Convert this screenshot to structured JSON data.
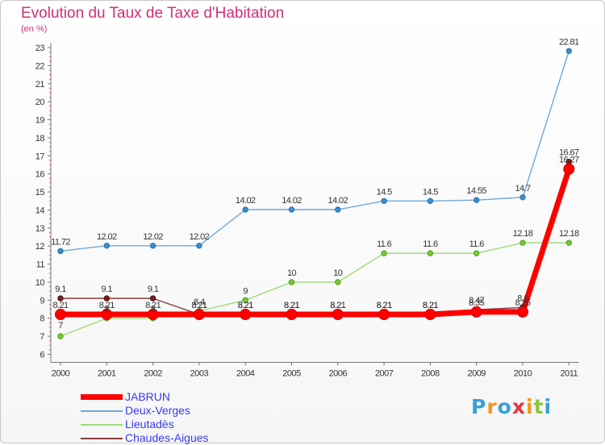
{
  "header": {
    "title": "Evolution du Taux de Taxe d'Habitation",
    "subtitle": "(en %)"
  },
  "logo": {
    "text": "Proxiti",
    "letters": [
      "P",
      "r",
      "o",
      "x",
      "i",
      "t",
      "i"
    ],
    "colors": [
      "#3aa0d8",
      "#f7941d",
      "#3aa0d8",
      "#e8363b",
      "#f7941d",
      "#8cc63f",
      "#3aa0d8"
    ]
  },
  "chart_data": {
    "type": "line",
    "title": "Evolution du Taux de Taxe d'Habitation",
    "subtitle": "(en %)",
    "x": [
      "2000",
      "2001",
      "2002",
      "2003",
      "2004",
      "2005",
      "2006",
      "2007",
      "2008",
      "2009",
      "2010",
      "2011"
    ],
    "ylim": [
      6,
      23
    ],
    "yticks": [
      "6",
      "7",
      "8",
      "9",
      "10",
      "11",
      "12",
      "13",
      "14",
      "15",
      "16",
      "17",
      "18",
      "19",
      "20",
      "21",
      "22",
      "23"
    ],
    "grid": false,
    "legend_position": "bottom-left",
    "series": [
      {
        "name": "JABRUN",
        "color": "#ff0000",
        "values": [
          8.21,
          8.21,
          8.21,
          8.21,
          8.21,
          8.21,
          8.21,
          8.21,
          8.21,
          8.35,
          8.35,
          16.27
        ],
        "labels": [
          "8.21",
          "8.21",
          "8.21",
          "8.21",
          "8.21",
          "8.21",
          "8.21",
          "8.21",
          "8.21",
          "8.35",
          "8.35",
          "16.27"
        ]
      },
      {
        "name": "Deux-Verges",
        "color": "#6fa8dc",
        "values": [
          11.72,
          12.02,
          12.02,
          12.02,
          14.02,
          14.02,
          14.02,
          14.5,
          14.5,
          14.55,
          14.7,
          22.81
        ],
        "labels": [
          "11.72",
          "12.02",
          "12.02",
          "12.02",
          "14.02",
          "14.02",
          "14.02",
          "14.5",
          "14.5",
          "14.55",
          "14.7",
          "22.81"
        ]
      },
      {
        "name": "Lieutadès",
        "color": "#99dd77",
        "values": [
          7,
          8,
          8,
          8.4,
          9,
          10,
          10,
          11.6,
          11.6,
          11.6,
          12.18,
          12.18
        ],
        "labels": [
          "7",
          "8",
          "8",
          "8.4",
          "9",
          "10",
          "10",
          "11.6",
          "11.6",
          "11.6",
          "12.18",
          "12.18"
        ]
      },
      {
        "name": "Chaudes-Aigues",
        "color": "#8b3a3a",
        "values": [
          9.1,
          9.1,
          9.1,
          8.21,
          8.21,
          8.21,
          8.21,
          8.21,
          8.21,
          8.47,
          8.6,
          16.67
        ],
        "labels": [
          "9.1",
          "9.1",
          "9.1",
          "8.21",
          "8.21",
          "8.21",
          "8.21",
          "8.21",
          "8.21",
          "8.47",
          "8.6",
          "16.67"
        ]
      }
    ]
  }
}
